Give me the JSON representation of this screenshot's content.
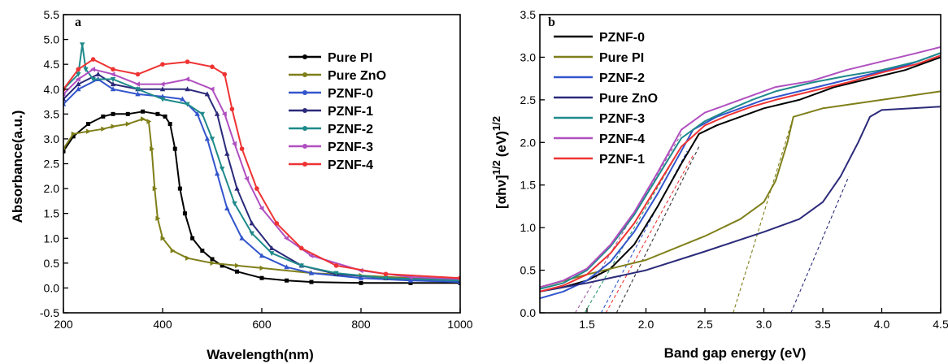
{
  "chart_data": [
    {
      "panel_label": "a",
      "type": "line",
      "xlabel": "Wavelength(nm)",
      "ylabel": "Absorbance(a.u.)",
      "xlim": [
        200,
        1000
      ],
      "ylim": [
        -0.5,
        5.5
      ],
      "xticks": [
        200,
        400,
        600,
        800,
        1000
      ],
      "yticks": [
        -0.5,
        0.0,
        0.5,
        1.0,
        1.5,
        2.0,
        2.5,
        3.0,
        3.5,
        4.0,
        4.5,
        5.0,
        5.5
      ],
      "ytick_labels": [
        "-0.5",
        "0.0",
        "0.5",
        "1.0",
        "1.5",
        "2.0",
        "2.5",
        "3.0",
        "3.5",
        "4.0",
        "4.5",
        "5.0",
        "5.5"
      ],
      "legend_position": "top-right",
      "series": [
        {
          "name": "Pure PI",
          "color": "#000000",
          "marker": "square",
          "x": [
            200,
            220,
            250,
            280,
            300,
            330,
            360,
            390,
            405,
            415,
            425,
            435,
            445,
            460,
            480,
            500,
            520,
            550,
            600,
            650,
            700,
            800,
            900,
            1000
          ],
          "y": [
            2.75,
            3.05,
            3.3,
            3.45,
            3.5,
            3.5,
            3.55,
            3.5,
            3.45,
            3.3,
            2.8,
            2.0,
            1.5,
            1.0,
            0.75,
            0.58,
            0.45,
            0.33,
            0.2,
            0.15,
            0.12,
            0.1,
            0.1,
            0.1
          ]
        },
        {
          "name": "Pure ZnO",
          "color": "#7f7f1a",
          "marker": "triangle-right",
          "x": [
            200,
            220,
            250,
            280,
            300,
            330,
            360,
            372,
            378,
            384,
            390,
            400,
            420,
            450,
            500,
            550,
            600,
            700,
            800,
            900,
            1000
          ],
          "y": [
            2.8,
            3.1,
            3.15,
            3.2,
            3.25,
            3.3,
            3.4,
            3.35,
            2.8,
            2.0,
            1.4,
            1.0,
            0.75,
            0.6,
            0.5,
            0.45,
            0.4,
            0.3,
            0.25,
            0.2,
            0.18
          ]
        },
        {
          "name": "PZNF-0",
          "color": "#3355cc",
          "marker": "triangle-up",
          "x": [
            200,
            230,
            270,
            300,
            350,
            400,
            440,
            470,
            490,
            510,
            530,
            560,
            600,
            650,
            700,
            800,
            900,
            1000
          ],
          "y": [
            3.7,
            4.0,
            4.2,
            4.0,
            3.9,
            3.85,
            3.8,
            3.5,
            3.0,
            2.3,
            1.6,
            1.0,
            0.65,
            0.42,
            0.3,
            0.2,
            0.15,
            0.12
          ]
        },
        {
          "name": "PZNF-1",
          "color": "#2b2a7a",
          "marker": "triangle-up",
          "x": [
            200,
            230,
            270,
            300,
            350,
            400,
            450,
            490,
            510,
            530,
            550,
            580,
            620,
            680,
            750,
            850,
            1000
          ],
          "y": [
            3.8,
            4.1,
            4.3,
            4.1,
            4.0,
            4.0,
            4.0,
            3.9,
            3.5,
            2.7,
            2.0,
            1.3,
            0.8,
            0.45,
            0.28,
            0.2,
            0.15
          ]
        },
        {
          "name": "PZNF-2",
          "color": "#1f8a8a",
          "marker": "triangle-down",
          "x": [
            200,
            230,
            238,
            245,
            260,
            300,
            350,
            400,
            450,
            480,
            500,
            520,
            545,
            580,
            620,
            680,
            750,
            850,
            1000
          ],
          "y": [
            4.0,
            4.3,
            4.9,
            4.4,
            4.2,
            4.2,
            4.0,
            3.8,
            3.7,
            3.5,
            3.0,
            2.4,
            1.7,
            1.1,
            0.7,
            0.45,
            0.3,
            0.2,
            0.15
          ]
        },
        {
          "name": "PZNF-3",
          "color": "#b050c0",
          "marker": "triangle-left",
          "x": [
            200,
            230,
            260,
            300,
            350,
            400,
            450,
            500,
            525,
            545,
            570,
            600,
            650,
            700,
            800,
            900,
            1000
          ],
          "y": [
            3.9,
            4.2,
            4.4,
            4.3,
            4.1,
            4.1,
            4.2,
            4.0,
            3.5,
            2.9,
            2.2,
            1.6,
            1.0,
            0.65,
            0.35,
            0.22,
            0.18
          ]
        },
        {
          "name": "PZNF-4",
          "color": "#ee3333",
          "marker": "circle",
          "x": [
            200,
            230,
            260,
            300,
            350,
            400,
            450,
            500,
            525,
            540,
            560,
            590,
            630,
            680,
            750,
            850,
            1000
          ],
          "y": [
            4.0,
            4.4,
            4.6,
            4.4,
            4.3,
            4.5,
            4.55,
            4.45,
            4.3,
            3.6,
            2.8,
            2.0,
            1.3,
            0.8,
            0.45,
            0.28,
            0.2
          ]
        }
      ]
    },
    {
      "panel_label": "b",
      "type": "line",
      "xlabel": "Band gap energy (eV)",
      "ylabel_main": "[αhν]",
      "ylabel_sup1": "1/2",
      "ylabel_unit": "(eV)",
      "ylabel_sup2": "1/2",
      "xlim": [
        1.1,
        4.5
      ],
      "ylim": [
        0.0,
        3.5
      ],
      "xticks": [
        1.5,
        2.0,
        2.5,
        3.0,
        3.5,
        4.0,
        4.5
      ],
      "xtick_labels": [
        "1.5",
        "2.0",
        "2.5",
        "3.0",
        "3.5",
        "4.0",
        "4.5"
      ],
      "yticks": [
        0.0,
        0.5,
        1.0,
        1.5,
        2.0,
        2.5,
        3.0,
        3.5
      ],
      "ytick_labels": [
        "0.0",
        "0.5",
        "1.0",
        "1.5",
        "2.0",
        "2.5",
        "3.0",
        "3.5"
      ],
      "legend_position": "top-left",
      "series": [
        {
          "name": "PZNF-0",
          "color": "#000000",
          "x": [
            1.1,
            1.3,
            1.5,
            1.7,
            1.9,
            2.1,
            2.3,
            2.45,
            2.6,
            2.8,
            3.0,
            3.3,
            3.6,
            3.9,
            4.2,
            4.5
          ],
          "y": [
            0.25,
            0.3,
            0.38,
            0.52,
            0.8,
            1.25,
            1.75,
            2.1,
            2.2,
            2.3,
            2.4,
            2.5,
            2.65,
            2.75,
            2.85,
            3.0
          ]
        },
        {
          "name": "Pure PI",
          "color": "#7f7f1a",
          "x": [
            1.1,
            1.5,
            2.0,
            2.5,
            2.8,
            3.0,
            3.1,
            3.2,
            3.25,
            3.5,
            4.0,
            4.5
          ],
          "y": [
            0.3,
            0.45,
            0.62,
            0.9,
            1.1,
            1.3,
            1.55,
            2.0,
            2.3,
            2.4,
            2.5,
            2.6
          ]
        },
        {
          "name": "PZNF-2",
          "color": "#3355cc",
          "x": [
            1.1,
            1.3,
            1.5,
            1.7,
            1.9,
            2.1,
            2.3,
            2.4,
            2.6,
            2.8,
            3.0,
            3.3,
            3.6,
            3.9,
            4.2,
            4.5
          ],
          "y": [
            0.17,
            0.25,
            0.38,
            0.6,
            0.95,
            1.4,
            1.9,
            2.15,
            2.3,
            2.4,
            2.5,
            2.6,
            2.7,
            2.8,
            2.9,
            3.05
          ]
        },
        {
          "name": "Pure ZnO",
          "color": "#2b2a7a",
          "x": [
            1.1,
            1.5,
            2.0,
            2.5,
            3.0,
            3.3,
            3.5,
            3.65,
            3.8,
            3.9,
            4.0,
            4.5
          ],
          "y": [
            0.25,
            0.35,
            0.5,
            0.72,
            0.95,
            1.1,
            1.3,
            1.6,
            2.0,
            2.3,
            2.38,
            2.42
          ]
        },
        {
          "name": "PZNF-3",
          "color": "#1f8a8a",
          "x": [
            1.1,
            1.3,
            1.5,
            1.7,
            1.9,
            2.1,
            2.3,
            2.5,
            2.7,
            2.9,
            3.1,
            3.4,
            3.7,
            4.0,
            4.3,
            4.5
          ],
          "y": [
            0.28,
            0.35,
            0.5,
            0.78,
            1.15,
            1.6,
            2.05,
            2.25,
            2.38,
            2.5,
            2.6,
            2.7,
            2.78,
            2.85,
            2.95,
            3.05
          ]
        },
        {
          "name": "PZNF-4",
          "color": "#b050c0",
          "x": [
            1.1,
            1.3,
            1.5,
            1.7,
            1.9,
            2.1,
            2.3,
            2.5,
            2.7,
            2.9,
            3.1,
            3.4,
            3.7,
            4.0,
            4.3,
            4.5
          ],
          "y": [
            0.3,
            0.38,
            0.52,
            0.8,
            1.18,
            1.65,
            2.15,
            2.35,
            2.45,
            2.55,
            2.65,
            2.72,
            2.85,
            2.95,
            3.05,
            3.12
          ]
        },
        {
          "name": "PZNF-1",
          "color": "#ee3333",
          "x": [
            1.1,
            1.3,
            1.5,
            1.7,
            1.9,
            2.1,
            2.3,
            2.5,
            2.7,
            2.9,
            3.1,
            3.4,
            3.7,
            4.0,
            4.3,
            4.5
          ],
          "y": [
            0.25,
            0.32,
            0.45,
            0.7,
            1.05,
            1.5,
            1.95,
            2.2,
            2.32,
            2.42,
            2.5,
            2.6,
            2.7,
            2.82,
            2.92,
            3.02
          ]
        }
      ],
      "fit_lines": [
        {
          "color": "#9b5fa0",
          "x": [
            1.4,
            2.3
          ],
          "y": [
            0.0,
            2.1
          ]
        },
        {
          "color": "#2a9a6a",
          "x": [
            1.48,
            2.3
          ],
          "y": [
            0.0,
            1.95
          ]
        },
        {
          "color": "#3355cc",
          "x": [
            1.62,
            2.35
          ],
          "y": [
            0.0,
            1.9
          ]
        },
        {
          "color": "#ee3333",
          "x": [
            1.66,
            2.4
          ],
          "y": [
            0.0,
            1.85
          ]
        },
        {
          "color": "#333333",
          "x": [
            1.75,
            2.45
          ],
          "y": [
            0.0,
            1.95
          ]
        },
        {
          "color": "#7f7f1a",
          "x": [
            2.74,
            3.25
          ],
          "y": [
            0.0,
            2.3
          ]
        },
        {
          "color": "#2b2a7a",
          "x": [
            3.23,
            3.72
          ],
          "y": [
            0.0,
            1.6
          ]
        }
      ]
    }
  ]
}
